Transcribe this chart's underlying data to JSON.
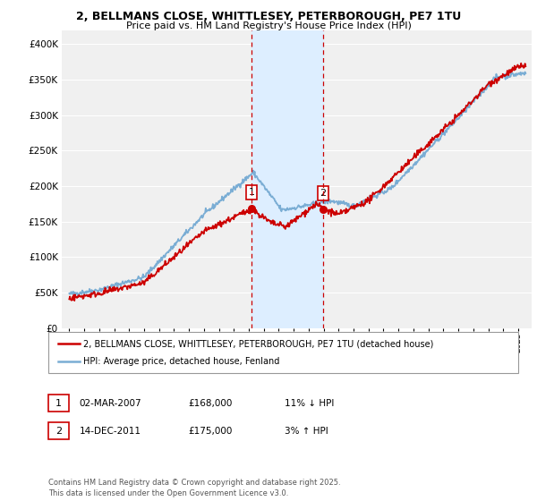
{
  "title_line1": "2, BELLMANS CLOSE, WHITTLESEY, PETERBOROUGH, PE7 1TU",
  "title_line2": "Price paid vs. HM Land Registry's House Price Index (HPI)",
  "legend_label1": "2, BELLMANS CLOSE, WHITTLESEY, PETERBOROUGH, PE7 1TU (detached house)",
  "legend_label2": "HPI: Average price, detached house, Fenland",
  "annotation1": {
    "num": "1",
    "date": "02-MAR-2007",
    "price": "£168,000",
    "pct": "11% ↓ HPI"
  },
  "annotation2": {
    "num": "2",
    "date": "14-DEC-2011",
    "price": "£175,000",
    "pct": "3% ↑ HPI"
  },
  "footnote": "Contains HM Land Registry data © Crown copyright and database right 2025.\nThis data is licensed under the Open Government Licence v3.0.",
  "color_red": "#cc0000",
  "color_blue": "#7aadd4",
  "color_shading": "#ddeeff",
  "color_vline": "#cc0000",
  "ylim": [
    0,
    420000
  ],
  "yticks": [
    0,
    50000,
    100000,
    150000,
    200000,
    250000,
    300000,
    350000,
    400000
  ],
  "sale1_year": 2007.17,
  "sale2_year": 2011.96,
  "bg_color": "#f0f0f0"
}
